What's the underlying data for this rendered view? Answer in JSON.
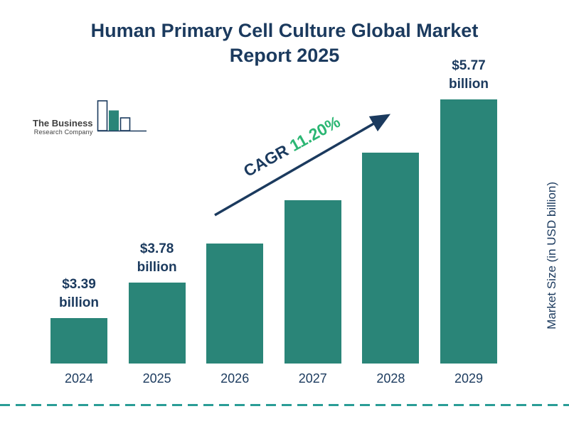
{
  "title": {
    "line1": "Human Primary Cell Culture Global Market",
    "line2": "Report 2025"
  },
  "logo": {
    "name_line1": "The Business",
    "name_line2": "Research Company"
  },
  "annotation": {
    "cagr_label": "CAGR",
    "cagr_value": "11.20%"
  },
  "axis": {
    "y_label": "Market Size (in USD billion)"
  },
  "colors": {
    "bar": "#2a8578",
    "navy": "#1b3a5e",
    "green": "#2bb673",
    "dashed_line": "#2a9d96"
  },
  "chart_data": {
    "type": "bar",
    "title": "Human Primary Cell Culture Global Market Report 2025",
    "xlabel": "",
    "ylabel": "Market Size (in USD billion)",
    "categories": [
      "2024",
      "2025",
      "2026",
      "2027",
      "2028",
      "2029"
    ],
    "values": [
      3.39,
      3.78,
      4.2,
      4.67,
      5.19,
      5.77
    ],
    "units": "USD billion",
    "ylim": [
      2.9,
      5.9
    ],
    "grid": false,
    "legend": "none",
    "bar_color": "#2a8578",
    "annotation": "CAGR 11.20%",
    "bar_labels": [
      {
        "amount": "$3.39",
        "unit": "billion"
      },
      {
        "amount": "$3.78",
        "unit": "billion"
      },
      {
        "amount": "",
        "unit": ""
      },
      {
        "amount": "",
        "unit": ""
      },
      {
        "amount": "",
        "unit": ""
      },
      {
        "amount": "$5.77",
        "unit": "billion"
      }
    ]
  }
}
